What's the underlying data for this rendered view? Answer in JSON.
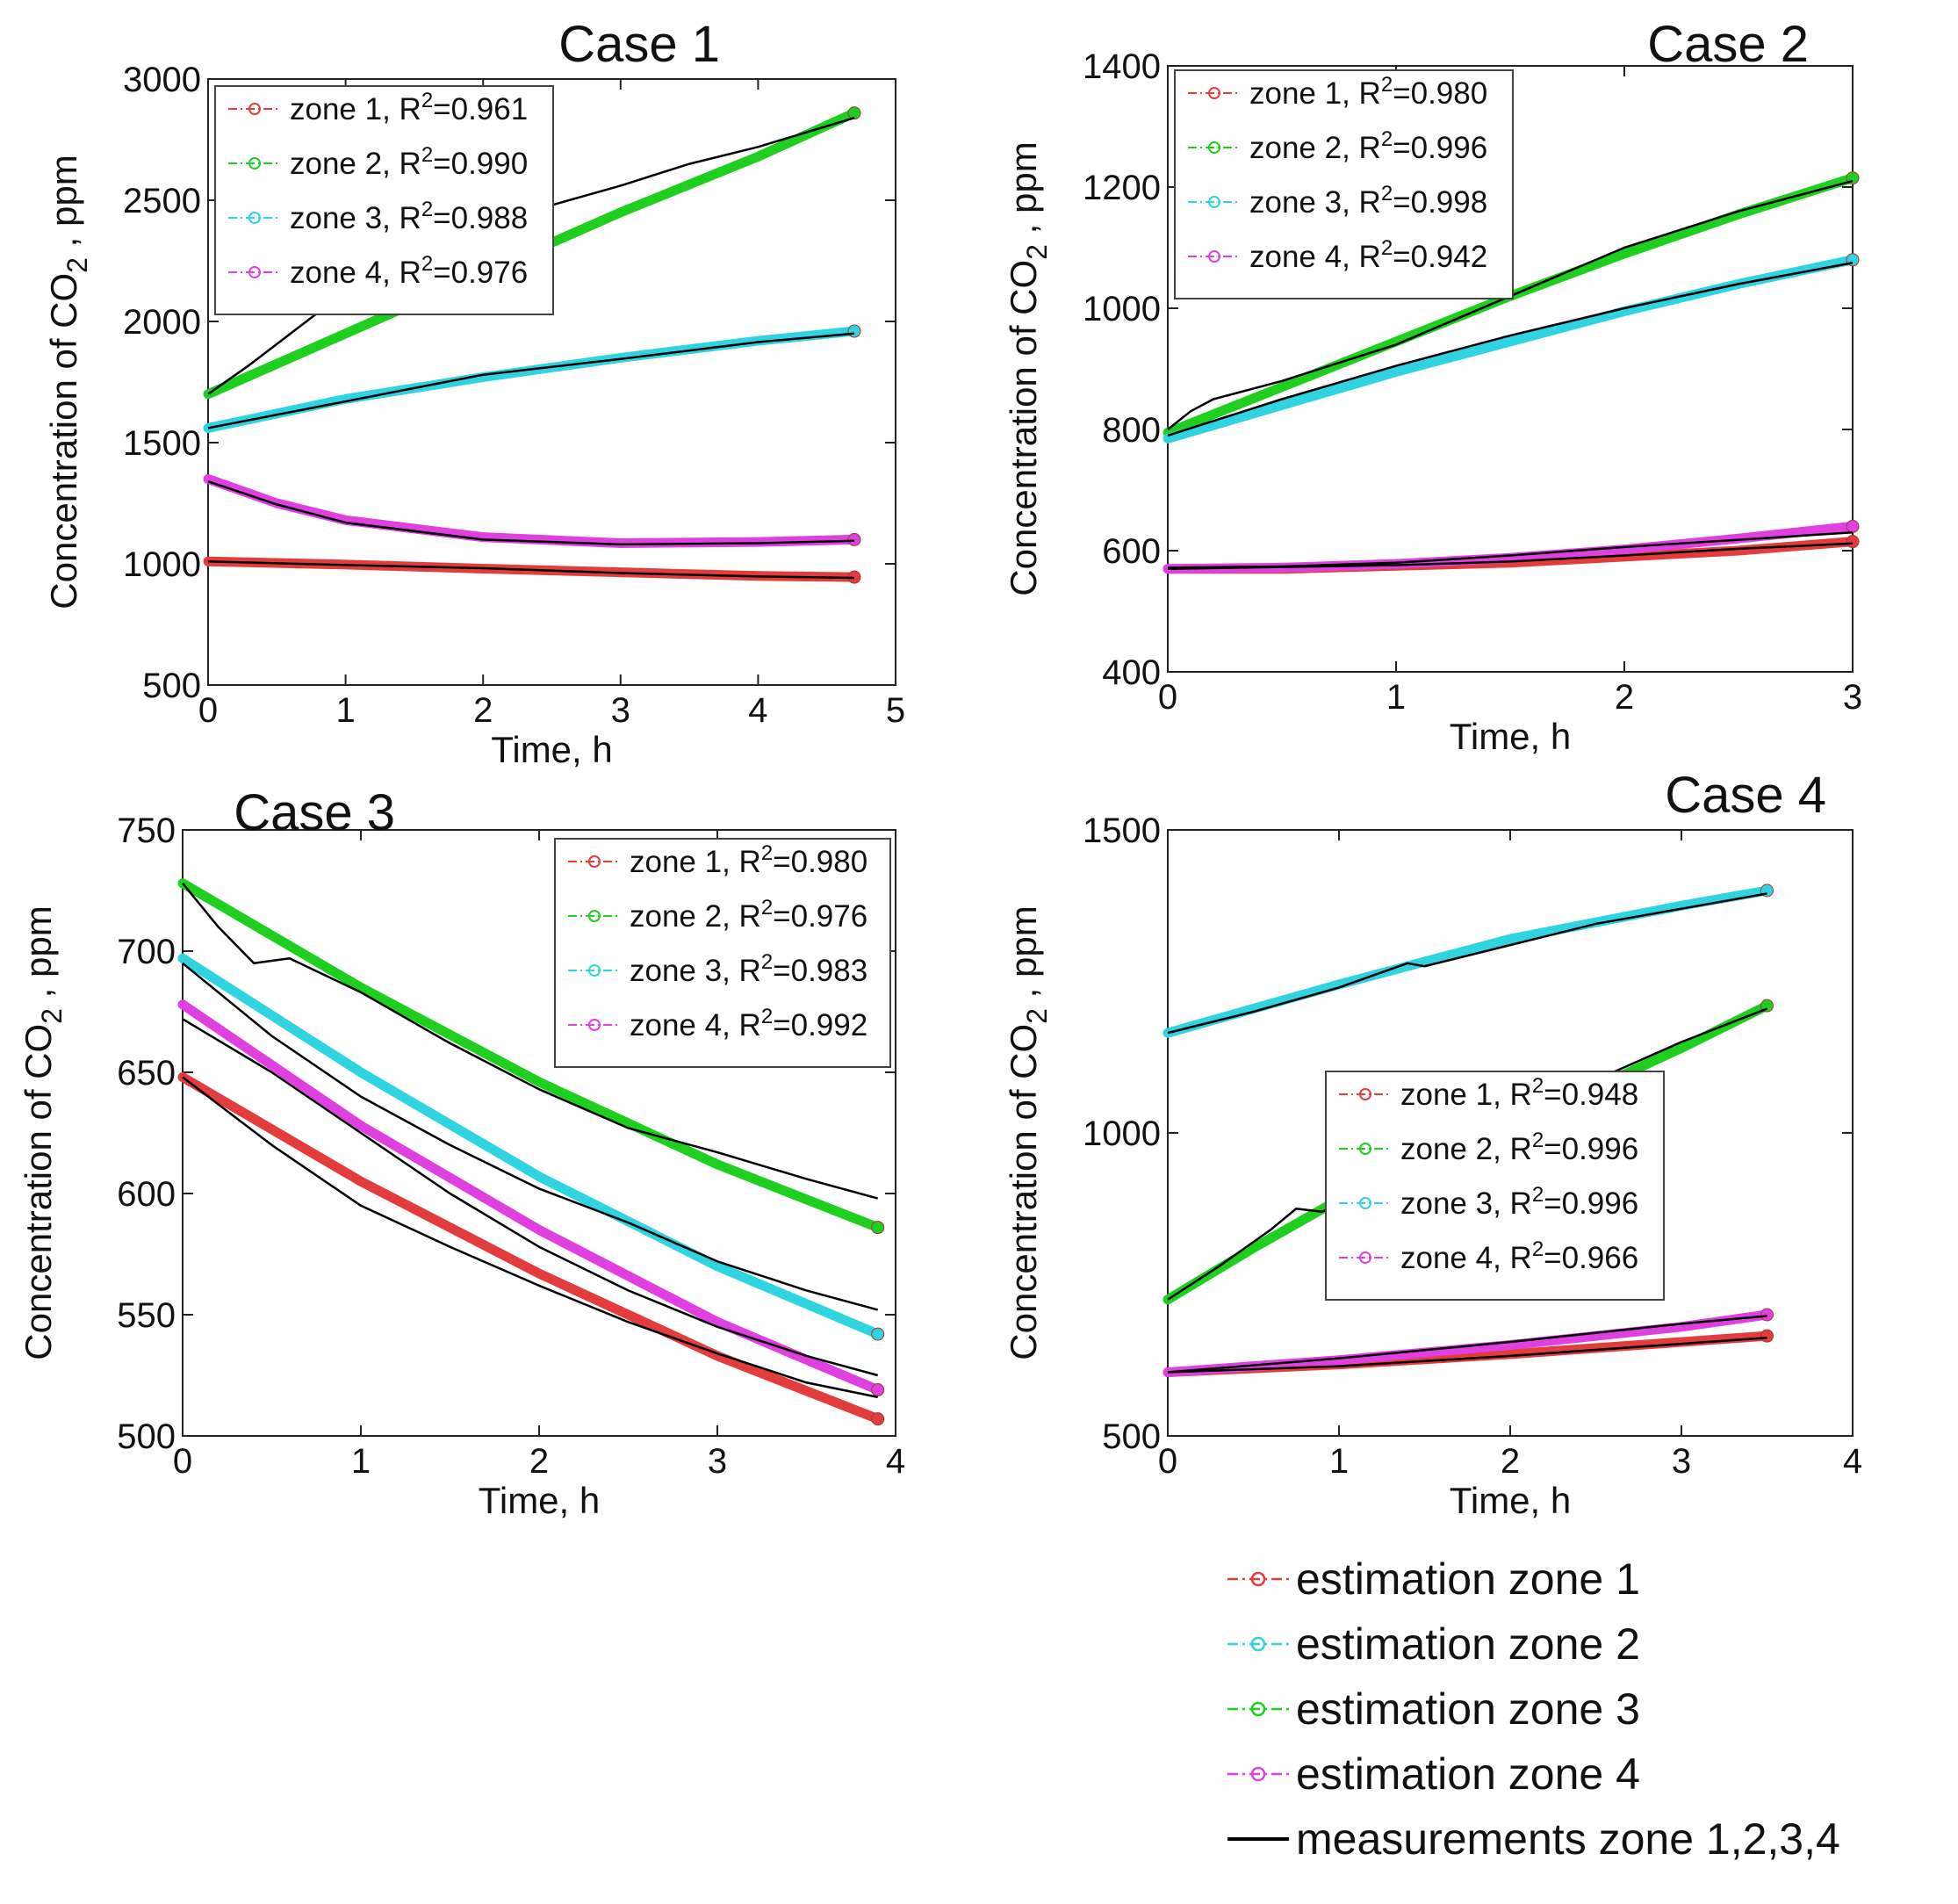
{
  "figure": {
    "bottom_legend": {
      "entries": [
        {
          "label": "estimation zone 1",
          "color": "#e23c3c",
          "style": "dashdot-marker"
        },
        {
          "label": "estimation zone 2",
          "color": "#2fd4e0",
          "style": "dashdot-marker"
        },
        {
          "label": "estimation zone 3",
          "color": "#1fcf1f",
          "style": "dashdot-marker"
        },
        {
          "label": "estimation zone 4",
          "color": "#e040e0",
          "style": "dashdot-marker"
        },
        {
          "label": "measurements zone 1,2,3,4",
          "color": "#000000",
          "style": "solid"
        }
      ]
    }
  },
  "chart_data": [
    {
      "type": "line",
      "title": "Case 1",
      "xlabel": "Time, h",
      "ylabel": "Concentration of CO2 , ppm",
      "ylabel_parts": {
        "pre": "Concentration of CO",
        "sub": "2",
        "post": " , ppm"
      },
      "xlim": [
        0,
        5
      ],
      "ylim": [
        500,
        3000
      ],
      "xticks": [
        0,
        1,
        2,
        3,
        4,
        5
      ],
      "yticks": [
        500,
        1000,
        1500,
        2000,
        2500,
        3000
      ],
      "xtick_labels": [
        "0",
        "1",
        "2",
        "3",
        "4",
        "5"
      ],
      "ytick_labels": [
        "500",
        "1000",
        "1500",
        "2000",
        "2500",
        "3000"
      ],
      "legend_pos": "top-left",
      "series": [
        {
          "name": "zone 1",
          "r2": "0.961",
          "color": "#e23c3c",
          "x": [
            0,
            1,
            2,
            3,
            4,
            4.7
          ],
          "y": [
            1010,
            997,
            980,
            965,
            950,
            945
          ]
        },
        {
          "name": "zone 2",
          "r2": "0.990",
          "color": "#1fcf1f",
          "x": [
            0,
            1,
            2,
            3,
            4,
            4.7
          ],
          "y": [
            1700,
            1950,
            2200,
            2450,
            2680,
            2860
          ]
        },
        {
          "name": "zone 3",
          "r2": "0.988",
          "color": "#2fd4e0",
          "x": [
            0,
            1,
            2,
            3,
            4,
            4.7
          ],
          "y": [
            1560,
            1680,
            1770,
            1850,
            1920,
            1960
          ]
        },
        {
          "name": "zone 4",
          "r2": "0.976",
          "color": "#e040e0",
          "x": [
            0,
            0.5,
            1,
            2,
            3,
            4,
            4.7
          ],
          "y": [
            1350,
            1250,
            1180,
            1110,
            1085,
            1090,
            1100
          ]
        }
      ],
      "measurements": [
        {
          "x": [
            0,
            1,
            2,
            3,
            4,
            4.7
          ],
          "y": [
            1010,
            995,
            982,
            962,
            948,
            942
          ]
        },
        {
          "x": [
            0,
            0.3,
            0.6,
            0.9,
            1.2,
            1.6,
            2,
            2.5,
            3,
            3.5,
            4,
            4.7
          ],
          "y": [
            1700,
            1820,
            1950,
            2080,
            2200,
            2300,
            2400,
            2480,
            2560,
            2650,
            2720,
            2840
          ]
        },
        {
          "x": [
            0,
            1,
            2,
            3,
            4,
            4.7
          ],
          "y": [
            1560,
            1670,
            1780,
            1845,
            1915,
            1950
          ]
        },
        {
          "x": [
            0,
            0.5,
            1,
            2,
            3,
            4,
            4.7
          ],
          "y": [
            1340,
            1245,
            1170,
            1100,
            1080,
            1085,
            1095
          ]
        }
      ]
    },
    {
      "type": "line",
      "title": "Case 2",
      "xlabel": "Time, h",
      "ylabel": "Concentration of CO2 , ppm",
      "ylabel_parts": {
        "pre": "Concentration of CO",
        "sub": "2",
        "post": " , ppm"
      },
      "xlim": [
        0,
        3
      ],
      "ylim": [
        400,
        1400
      ],
      "xticks": [
        0,
        1,
        2,
        3
      ],
      "yticks": [
        400,
        600,
        800,
        1000,
        1200,
        1400
      ],
      "xtick_labels": [
        "0",
        "1",
        "2",
        "3"
      ],
      "ytick_labels": [
        "400",
        "600",
        "800",
        "1000",
        "1200",
        "1400"
      ],
      "legend_pos": "top-left",
      "series": [
        {
          "name": "zone 1",
          "r2": "0.980",
          "color": "#e23c3c",
          "x": [
            0,
            0.5,
            1,
            1.5,
            2,
            2.5,
            3
          ],
          "y": [
            570,
            570,
            575,
            580,
            590,
            600,
            615
          ]
        },
        {
          "name": "zone 2",
          "r2": "0.996",
          "color": "#1fcf1f",
          "x": [
            0,
            0.5,
            1,
            1.5,
            2,
            2.5,
            3
          ],
          "y": [
            795,
            870,
            945,
            1020,
            1090,
            1155,
            1215
          ]
        },
        {
          "name": "zone 3",
          "r2": "0.998",
          "color": "#2fd4e0",
          "x": [
            0,
            0.5,
            1,
            1.5,
            2,
            2.5,
            3
          ],
          "y": [
            785,
            840,
            895,
            945,
            995,
            1040,
            1080
          ]
        },
        {
          "name": "zone 4",
          "r2": "0.942",
          "color": "#e040e0",
          "x": [
            0,
            0.5,
            1,
            1.5,
            2,
            2.5,
            3
          ],
          "y": [
            570,
            572,
            578,
            588,
            602,
            620,
            640
          ]
        }
      ],
      "measurements": [
        {
          "x": [
            0,
            0.5,
            1,
            1.5,
            2,
            2.5,
            3
          ],
          "y": [
            570,
            573,
            576,
            582,
            592,
            603,
            612
          ]
        },
        {
          "x": [
            0,
            0.1,
            0.2,
            0.5,
            1,
            1.5,
            2,
            2.5,
            3
          ],
          "y": [
            800,
            830,
            850,
            880,
            940,
            1020,
            1100,
            1160,
            1210
          ]
        },
        {
          "x": [
            0,
            0.5,
            1,
            1.5,
            2,
            2.5,
            3
          ],
          "y": [
            790,
            850,
            905,
            955,
            1000,
            1040,
            1075
          ]
        },
        {
          "x": [
            0,
            0.5,
            1,
            1.5,
            2,
            2.5,
            3
          ],
          "y": [
            572,
            574,
            580,
            592,
            606,
            618,
            630
          ]
        }
      ]
    },
    {
      "type": "line",
      "title": "Case 3",
      "xlabel": "Time, h",
      "ylabel": "Concentration of CO2 , ppm",
      "ylabel_parts": {
        "pre": "Concentration of CO",
        "sub": "2",
        "post": " , ppm"
      },
      "xlim": [
        0,
        4
      ],
      "ylim": [
        500,
        750
      ],
      "xticks": [
        0,
        1,
        2,
        3,
        4
      ],
      "yticks": [
        500,
        550,
        600,
        650,
        700,
        750
      ],
      "xtick_labels": [
        "0",
        "1",
        "2",
        "3",
        "4"
      ],
      "ytick_labels": [
        "500",
        "550",
        "600",
        "650",
        "700",
        "750"
      ],
      "legend_pos": "top-right",
      "series": [
        {
          "name": "zone 1",
          "r2": "0.980",
          "color": "#e23c3c",
          "x": [
            0,
            1,
            2,
            3,
            3.9
          ],
          "y": [
            648,
            605,
            567,
            533,
            507
          ]
        },
        {
          "name": "zone 2",
          "r2": "0.976",
          "color": "#1fcf1f",
          "x": [
            0,
            1,
            2,
            3,
            3.9
          ],
          "y": [
            728,
            685,
            646,
            612,
            586
          ]
        },
        {
          "name": "zone 3",
          "r2": "0.983",
          "color": "#2fd4e0",
          "x": [
            0,
            1,
            2,
            3,
            3.9
          ],
          "y": [
            697,
            650,
            607,
            570,
            542
          ]
        },
        {
          "name": "zone 4",
          "r2": "0.992",
          "color": "#e040e0",
          "x": [
            0,
            1,
            2,
            3,
            3.9
          ],
          "y": [
            678,
            628,
            585,
            547,
            519
          ]
        }
      ],
      "measurements": [
        {
          "x": [
            0,
            0.5,
            1,
            1.5,
            2,
            2.5,
            3,
            3.5,
            3.9
          ],
          "y": [
            648,
            620,
            595,
            578,
            562,
            547,
            534,
            522,
            516
          ]
        },
        {
          "x": [
            0,
            0.2,
            0.4,
            0.6,
            1,
            1.5,
            2,
            2.5,
            3,
            3.5,
            3.9
          ],
          "y": [
            728,
            710,
            695,
            697,
            683,
            662,
            643,
            627,
            617,
            606,
            598
          ]
        },
        {
          "x": [
            0,
            0.5,
            1,
            1.5,
            2,
            2.5,
            3,
            3.5,
            3.9
          ],
          "y": [
            695,
            665,
            640,
            620,
            602,
            588,
            572,
            560,
            552
          ]
        },
        {
          "x": [
            0,
            0.5,
            1,
            1.5,
            2,
            2.5,
            3,
            3.5,
            3.9
          ],
          "y": [
            672,
            650,
            625,
            600,
            578,
            560,
            545,
            533,
            525
          ]
        }
      ]
    },
    {
      "type": "line",
      "title": "Case 4",
      "xlabel": "Time, h",
      "ylabel": "Concentration of CO2 , ppm",
      "ylabel_parts": {
        "pre": "Concentration of CO",
        "sub": "2",
        "post": " , ppm"
      },
      "xlim": [
        0,
        4
      ],
      "ylim": [
        500,
        1500
      ],
      "xticks": [
        0,
        1,
        2,
        3,
        4
      ],
      "yticks": [
        500,
        1000,
        1500
      ],
      "xtick_labels": [
        "0",
        "1",
        "2",
        "3",
        "4"
      ],
      "ytick_labels": [
        "500",
        "1000",
        "1500"
      ],
      "legend_pos": "center",
      "series": [
        {
          "name": "zone 1",
          "r2": "0.948",
          "color": "#e23c3c",
          "x": [
            0,
            1,
            2,
            3,
            3.5
          ],
          "y": [
            605,
            618,
            635,
            655,
            665
          ]
        },
        {
          "name": "zone 2",
          "r2": "0.996",
          "color": "#1fcf1f",
          "x": [
            0,
            0.5,
            1,
            2,
            3,
            3.5
          ],
          "y": [
            725,
            810,
            890,
            1010,
            1140,
            1210
          ]
        },
        {
          "name": "zone 3",
          "r2": "0.996",
          "color": "#2fd4e0",
          "x": [
            0,
            1,
            2,
            3,
            3.5
          ],
          "y": [
            1165,
            1245,
            1320,
            1375,
            1400
          ]
        },
        {
          "name": "zone 4",
          "r2": "0.966",
          "color": "#e040e0",
          "x": [
            0,
            1,
            2,
            3,
            3.5
          ],
          "y": [
            605,
            625,
            650,
            680,
            700
          ]
        }
      ],
      "measurements": [
        {
          "x": [
            0,
            1,
            2,
            3,
            3.5
          ],
          "y": [
            605,
            615,
            632,
            652,
            662
          ]
        },
        {
          "x": [
            0,
            0.3,
            0.6,
            0.75,
            0.9,
            1.2,
            1.6,
            2,
            2.6,
            3,
            3.5
          ],
          "y": [
            725,
            780,
            840,
            875,
            870,
            900,
            950,
            1010,
            1100,
            1150,
            1205
          ]
        },
        {
          "x": [
            0,
            0.5,
            1,
            1.4,
            1.5,
            2,
            2.5,
            3,
            3.5
          ],
          "y": [
            1165,
            1200,
            1240,
            1280,
            1275,
            1310,
            1345,
            1370,
            1395
          ]
        },
        {
          "x": [
            0,
            1,
            2,
            3,
            3.5
          ],
          "y": [
            605,
            628,
            655,
            685,
            698
          ]
        }
      ]
    }
  ]
}
